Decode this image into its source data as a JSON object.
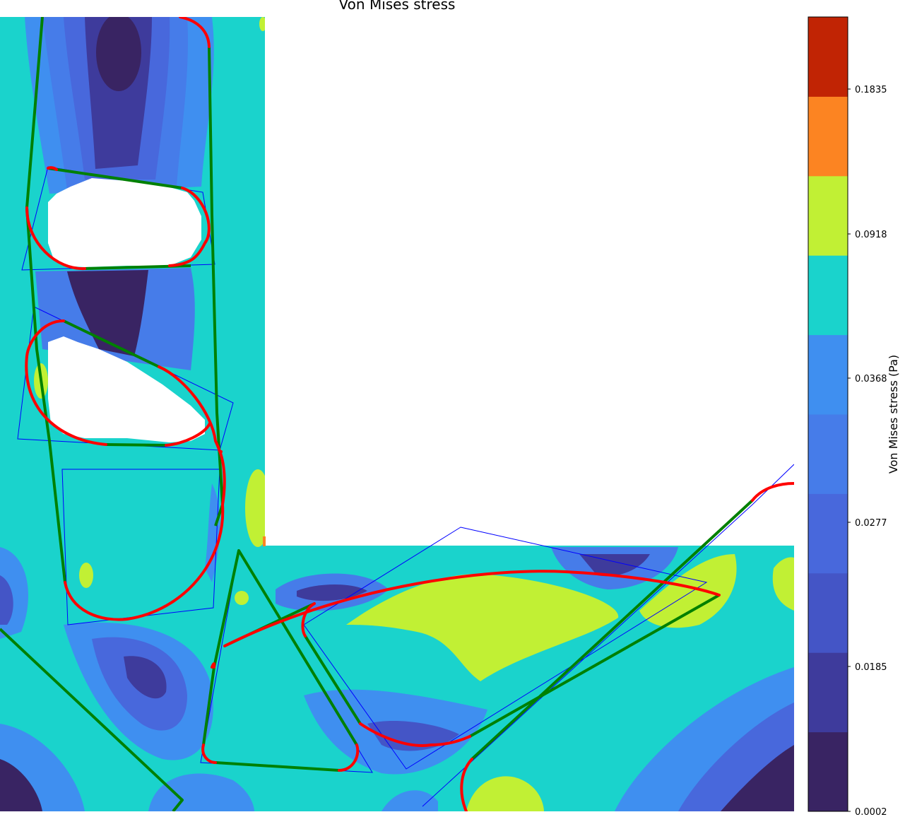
{
  "title": "Von Mises stress",
  "colorbar": {
    "label": "Von Mises stress (Pa)",
    "ticks": [
      "0.0002",
      "0.0185",
      "0.0277",
      "0.0368",
      "0.0918",
      "0.1835"
    ],
    "levels_colors": [
      "#392463",
      "#3e3b9c",
      "#4455c6",
      "#4868dc",
      "#467ce9",
      "#3f8ff0",
      "#1ad3cc",
      "#c1f034",
      "#fc8422",
      "#c12404"
    ]
  },
  "colors": {
    "inner_contour": "#ff0000",
    "outer_path": "#008000",
    "bounding_frame": "#0000ff",
    "void": "#ffffff"
  }
}
